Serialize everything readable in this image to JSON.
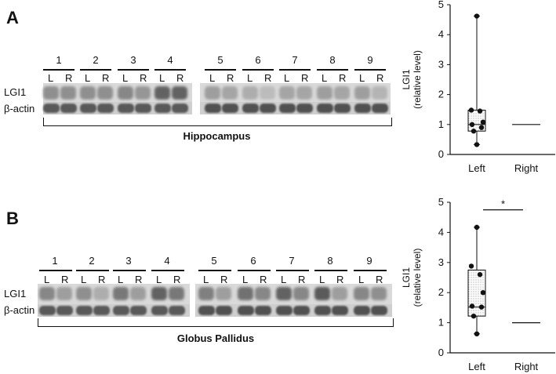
{
  "panels": [
    {
      "letter": "A",
      "region": "Hippocampus",
      "row_labels": {
        "target": "LGI1",
        "control": "β-actin"
      },
      "lanes": [
        "1",
        "2",
        "3",
        "4",
        "5",
        "6",
        "7",
        "8",
        "9"
      ],
      "sides": [
        "L",
        "R"
      ],
      "band_intensity": {
        "LGI1": [
          [
            0.55,
            0.55
          ],
          [
            0.55,
            0.55
          ],
          [
            0.6,
            0.5
          ],
          [
            0.85,
            0.85
          ],
          [
            0.45,
            0.4
          ],
          [
            0.35,
            0.25
          ],
          [
            0.4,
            0.4
          ],
          [
            0.45,
            0.4
          ],
          [
            0.45,
            0.3
          ]
        ],
        "actin": [
          [
            0.8,
            0.8
          ],
          [
            0.8,
            0.8
          ],
          [
            0.8,
            0.8
          ],
          [
            0.8,
            0.8
          ],
          [
            0.85,
            0.85
          ],
          [
            0.85,
            0.85
          ],
          [
            0.85,
            0.85
          ],
          [
            0.85,
            0.85
          ],
          [
            0.85,
            0.85
          ]
        ]
      }
    },
    {
      "letter": "B",
      "region": "Globus Pallidus",
      "row_labels": {
        "target": "LGI1",
        "control": "β-actin"
      },
      "lanes": [
        "1",
        "2",
        "3",
        "4",
        "5",
        "6",
        "7",
        "8",
        "9"
      ],
      "sides": [
        "L",
        "R"
      ],
      "band_intensity": {
        "LGI1": [
          [
            0.6,
            0.45
          ],
          [
            0.55,
            0.35
          ],
          [
            0.7,
            0.45
          ],
          [
            0.85,
            0.7
          ],
          [
            0.65,
            0.45
          ],
          [
            0.75,
            0.6
          ],
          [
            0.85,
            0.6
          ],
          [
            0.9,
            0.45
          ],
          [
            0.6,
            0.55
          ]
        ],
        "actin": [
          [
            0.8,
            0.8
          ],
          [
            0.8,
            0.8
          ],
          [
            0.8,
            0.8
          ],
          [
            0.8,
            0.8
          ],
          [
            0.85,
            0.85
          ],
          [
            0.85,
            0.85
          ],
          [
            0.85,
            0.85
          ],
          [
            0.85,
            0.85
          ],
          [
            0.85,
            0.85
          ]
        ]
      }
    }
  ],
  "chart_data": [
    {
      "type": "box",
      "ylabel_line1": "LGI1",
      "ylabel_line2": "(relative level)",
      "ylim": [
        0,
        5
      ],
      "yticks": [
        "0",
        "1",
        "2",
        "3",
        "4",
        "5"
      ],
      "categories": [
        "Left",
        "Right"
      ],
      "left": {
        "min": 0.33,
        "q1": 0.78,
        "median": 1.0,
        "q3": 1.48,
        "max": 4.62,
        "points": [
          4.62,
          1.48,
          1.45,
          1.08,
          1.0,
          0.9,
          0.78,
          0.33
        ]
      },
      "right": {
        "value": 1.0
      },
      "significance": ""
    },
    {
      "type": "box",
      "ylabel_line1": "LGI1",
      "ylabel_line2": "(relative level)",
      "ylim": [
        0,
        5
      ],
      "yticks": [
        "0",
        "1",
        "2",
        "3",
        "4",
        "5"
      ],
      "categories": [
        "Left",
        "Right"
      ],
      "left": {
        "min": 0.63,
        "q1": 1.22,
        "median": 1.52,
        "q3": 2.75,
        "max": 4.17,
        "points": [
          4.17,
          2.88,
          2.6,
          2.0,
          1.55,
          1.52,
          1.22,
          0.63
        ]
      },
      "right": {
        "value": 1.0
      },
      "significance": "*"
    }
  ]
}
